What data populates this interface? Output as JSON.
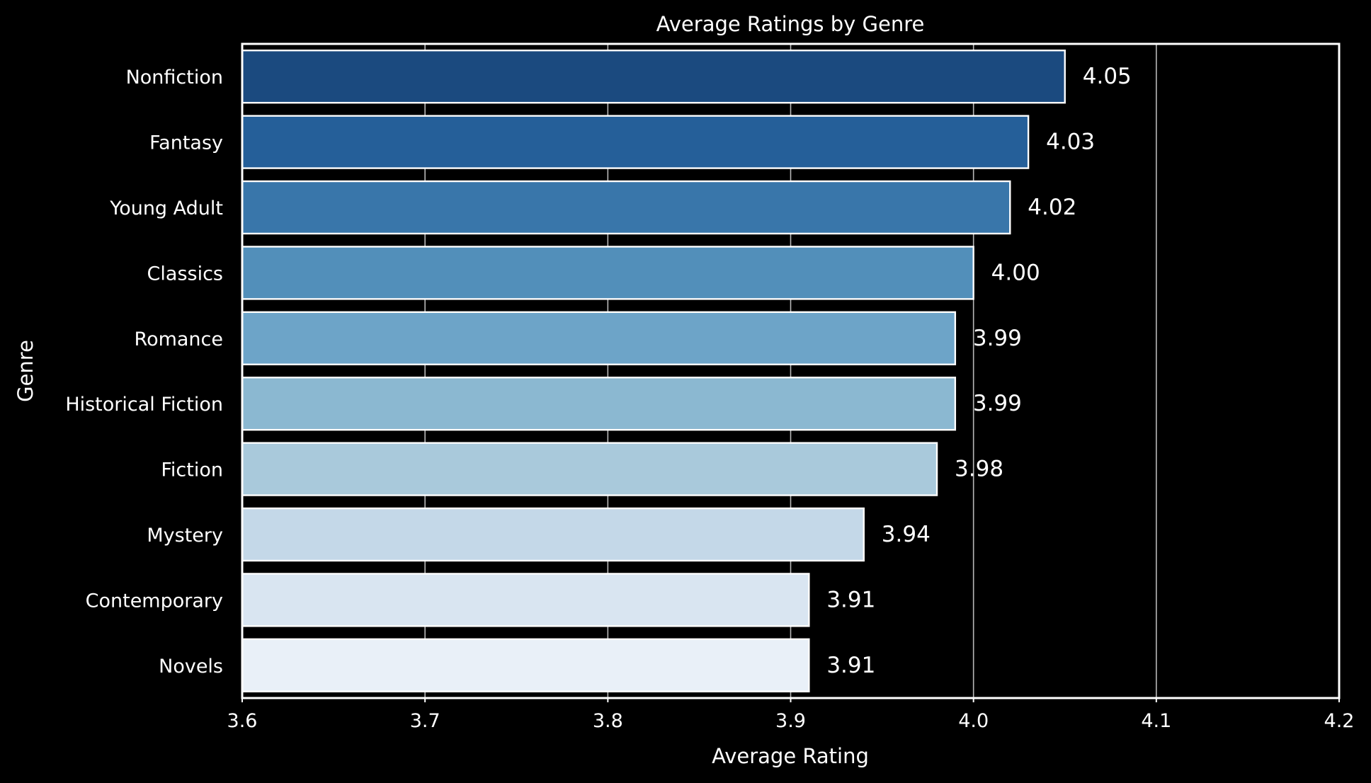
{
  "chart_data": {
    "type": "bar",
    "orientation": "horizontal",
    "title": "Average Ratings by Genre",
    "xlabel": "Average Rating",
    "ylabel": "Genre",
    "xlim": [
      3.6,
      4.2
    ],
    "xticks": [
      "3.6",
      "3.7",
      "3.8",
      "3.9",
      "4.0",
      "4.1",
      "4.2"
    ],
    "grid": true,
    "categories": [
      "Nonfiction",
      "Fantasy",
      "Young Adult",
      "Classics",
      "Romance",
      "Historical Fiction",
      "Fiction",
      "Mystery",
      "Contemporary",
      "Novels"
    ],
    "values": [
      4.05,
      4.03,
      4.02,
      4.0,
      3.99,
      3.99,
      3.98,
      3.94,
      3.91,
      3.91
    ],
    "value_labels": [
      "4.05",
      "4.03",
      "4.02",
      "4.00",
      "3.99",
      "3.99",
      "3.98",
      "3.94",
      "3.91",
      "3.91"
    ],
    "colors": [
      "#1b4a7f",
      "#255f99",
      "#3976aa",
      "#528fba",
      "#6da4c8",
      "#8bb8d1",
      "#a9c9db",
      "#c4d8e8",
      "#d9e5f1",
      "#e9f0f8"
    ],
    "background": "#000000"
  }
}
